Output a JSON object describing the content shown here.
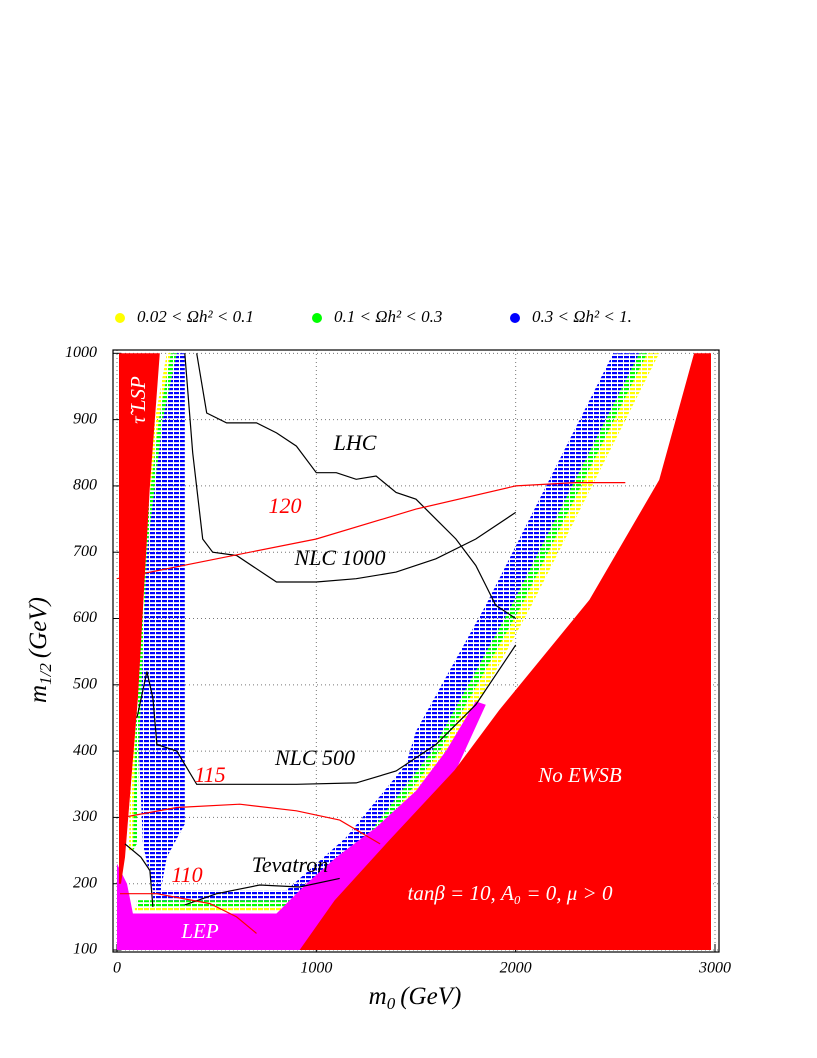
{
  "chart_data": {
    "type": "contour",
    "x_label": {
      "symbol": "m",
      "subscript": "0",
      "unit": "(GeV)"
    },
    "y_label": {
      "symbol": "m",
      "subscript": "1/2",
      "unit": "(GeV)"
    },
    "xlim": [
      -20,
      3020
    ],
    "ylim": [
      97,
      1005
    ],
    "xticks": [
      0,
      1000,
      2000,
      3000
    ],
    "yticks": [
      100,
      200,
      300,
      400,
      500,
      600,
      700,
      800,
      900,
      1000
    ],
    "grid": true,
    "legend": "top",
    "series": [
      {
        "name": "0.02 < Ωh² < 0.1",
        "color": "#ffff00",
        "regions": [
          {
            "x": [
              250,
              270,
              210,
              130,
              90,
              80,
              60,
              70,
              110,
              190
            ],
            "y": [
              1000,
              1000,
              900,
              700,
              400,
              250,
              250,
              400,
              700,
              900
            ]
          },
          {
            "x": [
              2660,
              2720,
              2080,
              1680,
              1350,
              1050,
              1000,
              1300,
              1620,
              2030
            ],
            "y": [
              1000,
              1000,
              620,
              400,
              270,
              200,
              200,
              270,
              400,
              620
            ]
          },
          {
            "x": [
              90,
              860,
              850,
              90
            ],
            "y": [
              165,
              165,
              158,
              158
            ]
          }
        ]
      },
      {
        "name": "0.1 < Ωh² < 0.3",
        "color": "#00ff00",
        "regions": [
          {
            "x": [
              270,
              300,
              230,
              150,
              110,
              100,
              80,
              90,
              130,
              210
            ],
            "y": [
              1000,
              1000,
              900,
              700,
              400,
              260,
              250,
              400,
              700,
              900
            ]
          },
          {
            "x": [
              2620,
              2660,
              2030,
              1620,
              1300,
              1000,
              950,
              1250,
              1580,
              1980
            ],
            "y": [
              1000,
              1000,
              620,
              400,
              270,
              200,
              200,
              270,
              400,
              620
            ]
          },
          {
            "x": [
              100,
              880,
              860,
              100
            ],
            "y": [
              175,
              175,
              165,
              165
            ]
          }
        ]
      },
      {
        "name": "0.3 < Ωh² < 1.",
        "color": "#0000ff",
        "regions": [
          {
            "x": [
              300,
              340,
              340,
              250,
              220,
              180,
              130,
              110,
              150,
              230
            ],
            "y": [
              1000,
              1000,
              290,
              240,
              190,
              190,
              260,
              400,
              700,
              900
            ]
          },
          {
            "x": [
              2490,
              2620,
              1980,
              1580,
              1250,
              950,
              900,
              850,
              1150,
              1450,
              1500,
              1850
            ],
            "y": [
              1000,
              1000,
              620,
              400,
              270,
              200,
              180,
              190,
              270,
              380,
              430,
              620
            ]
          },
          {
            "x": [
              180,
              900,
              880,
              180
            ],
            "y": [
              190,
              190,
              175,
              175
            ]
          }
        ]
      }
    ],
    "regions": [
      {
        "label": "LEP",
        "color": "#ff00ff",
        "x": [
          0,
          0,
          50,
          80,
          800,
          950,
          1100,
          1300,
          1500,
          1650,
          1800,
          1850,
          1700,
          1400,
          1100,
          950
        ],
        "y": [
          100,
          230,
          200,
          155,
          155,
          200,
          240,
          285,
          340,
          400,
          475,
          470,
          371,
          270,
          175,
          100
        ]
      },
      {
        "label": "τ̃ LSP",
        "color": "#ff0000",
        "x": [
          10,
          215,
          165,
          105,
          40,
          20,
          10
        ],
        "y": [
          1000,
          1000,
          800,
          480,
          240,
          200,
          200
        ]
      },
      {
        "label": "No EWSB",
        "color": "#ff0000",
        "x": [
          2895,
          2980,
          2980,
          916,
          1092,
          1367,
          1693,
          1918,
          2370,
          2720
        ],
        "y": [
          1000,
          1000,
          100,
          100,
          175,
          266,
          371,
          462,
          628,
          809
        ]
      }
    ],
    "curves": [
      {
        "label": "LHC",
        "color": "#000000",
        "x": [
          400,
          450,
          550,
          700,
          800,
          900,
          1000,
          1100,
          1200,
          1300,
          1400,
          1500,
          1600,
          1700,
          1800,
          1850,
          1900,
          2000
        ],
        "y": [
          1000,
          910,
          895,
          895,
          880,
          860,
          820,
          820,
          810,
          815,
          790,
          780,
          750,
          720,
          680,
          650,
          620,
          600
        ]
      },
      {
        "label": "NLC 1000",
        "color": "#000000",
        "x": [
          340,
          380,
          430,
          480,
          600,
          750,
          800,
          1000,
          1200,
          1400,
          1600,
          1800,
          2000
        ],
        "y": [
          1000,
          850,
          720,
          700,
          695,
          665,
          655,
          655,
          660,
          670,
          690,
          720,
          760
        ]
      },
      {
        "label": "NLC 500",
        "color": "#000000",
        "x": [
          100,
          150,
          180,
          200,
          300,
          400,
          900,
          1200,
          1400,
          1600,
          1800,
          2000
        ],
        "y": [
          450,
          520,
          480,
          410,
          400,
          350,
          350,
          352,
          370,
          410,
          470,
          560
        ]
      },
      {
        "label": "Tevatron",
        "color": "#000000",
        "x": [
          40,
          120,
          165,
          180,
          null,
          340,
          500,
          716,
          916,
          1117
        ],
        "y": [
          260,
          240,
          220,
          165,
          null,
          168,
          185,
          198,
          195,
          208
        ]
      },
      {
        "label": "120",
        "color": "#ff0000",
        "x": [
          0,
          500,
          1000,
          1500,
          2000,
          2300,
          2550
        ],
        "y": [
          660,
          690,
          720,
          765,
          800,
          805,
          805
        ]
      },
      {
        "label": "115",
        "color": "#ff0000",
        "x": [
          30,
          300,
          616,
          900,
          1117,
          1320
        ],
        "y": [
          300,
          315,
          320,
          310,
          296,
          260
        ]
      },
      {
        "label": "110",
        "color": "#ff0000",
        "x": [
          15,
          200,
          466,
          600,
          700
        ],
        "y": [
          185,
          185,
          170,
          150,
          125
        ]
      }
    ],
    "annotations": [
      {
        "text": "tanβ = 10, A₀ = 0, μ > 0",
        "color": "#ffffff"
      }
    ]
  }
}
